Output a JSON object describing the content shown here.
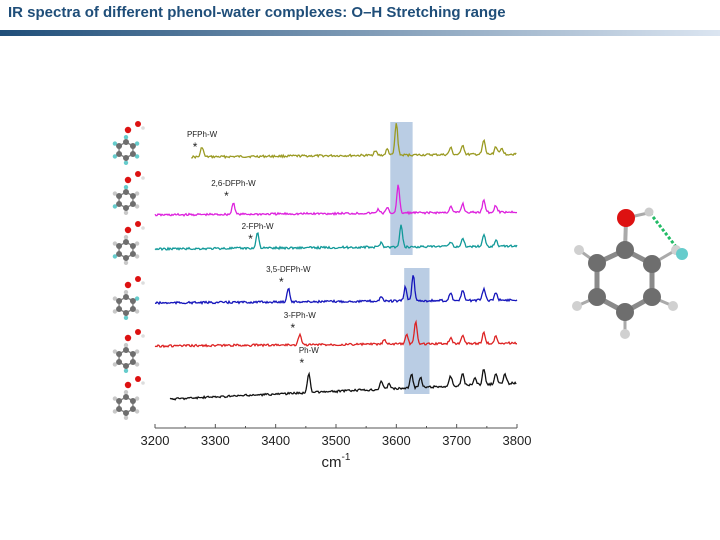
{
  "slide": {
    "title": "IR spectra of different phenol-water complexes: O–H Stretching range"
  },
  "colors": {
    "title": "#1f4e79",
    "title_bar_dark": "#1f4e79",
    "title_bar_light": "#dbe5f1",
    "highlight": "#a9c1dd",
    "oxygen": "#dd1111",
    "hydrogen": "#9aa0a6",
    "fluorine": "#66cccc",
    "carbon": "#6e6e6e",
    "hbond": "#22bb66"
  },
  "chart_data": {
    "type": "line",
    "title": "",
    "xlabel": "cm",
    "xlabel_superscript": "-1",
    "ylabel": "",
    "xlim": [
      3200,
      3800
    ],
    "xticks": [
      3200,
      3300,
      3400,
      3500,
      3600,
      3700,
      3800
    ],
    "grid": false,
    "highlight_bands": [
      {
        "x0": 3590,
        "x1": 3627,
        "traces": "upper three"
      },
      {
        "x0": 3613,
        "x1": 3655,
        "traces": "lower three"
      }
    ],
    "series": [
      {
        "name": "PFPh-W",
        "color": "#9a9a22",
        "x_start": 3260,
        "star_x": 3278,
        "peaks": [
          [
            3278,
            10
          ],
          [
            3565,
            5
          ],
          [
            3585,
            6
          ],
          [
            3600,
            32
          ],
          [
            3690,
            7
          ],
          [
            3710,
            10
          ],
          [
            3745,
            14
          ],
          [
            3765,
            8
          ],
          [
            3775,
            6
          ]
        ]
      },
      {
        "name": "2,6-DFPh-W",
        "color": "#dd22dd",
        "x_start": 3200,
        "star_x": 3330,
        "peaks": [
          [
            3330,
            12
          ],
          [
            3570,
            4
          ],
          [
            3585,
            5
          ],
          [
            3603,
            28
          ],
          [
            3690,
            6
          ],
          [
            3710,
            9
          ],
          [
            3745,
            13
          ],
          [
            3765,
            7
          ]
        ]
      },
      {
        "name": "2-FPh-W",
        "color": "#119999",
        "x_start": 3200,
        "star_x": 3370,
        "peaks": [
          [
            3370,
            16
          ],
          [
            3575,
            5
          ],
          [
            3608,
            22
          ],
          [
            3690,
            5
          ],
          [
            3710,
            8
          ],
          [
            3745,
            12
          ],
          [
            3765,
            6
          ]
        ]
      },
      {
        "name": "3,5-DFPh-W",
        "color": "#1515bb",
        "x_start": 3200,
        "star_x": 3421,
        "peaks": [
          [
            3421,
            14
          ],
          [
            3575,
            5
          ],
          [
            3615,
            14
          ],
          [
            3628,
            26
          ],
          [
            3690,
            8
          ],
          [
            3710,
            10
          ],
          [
            3745,
            12
          ],
          [
            3765,
            8
          ]
        ]
      },
      {
        "name": "3-FPh-W",
        "color": "#dd2222",
        "x_start": 3200,
        "star_x": 3440,
        "peaks": [
          [
            3440,
            11
          ],
          [
            3580,
            4
          ],
          [
            3617,
            9
          ],
          [
            3632,
            22
          ],
          [
            3690,
            6
          ],
          [
            3710,
            9
          ],
          [
            3745,
            11
          ],
          [
            3765,
            7
          ]
        ]
      },
      {
        "name": "Ph-W",
        "color": "#111111",
        "x_start": 3225,
        "star_x": 3455,
        "peaks": [
          [
            3455,
            20
          ],
          [
            3575,
            9
          ],
          [
            3588,
            6
          ],
          [
            3625,
            14
          ],
          [
            3640,
            10
          ],
          [
            3690,
            10
          ],
          [
            3710,
            12
          ],
          [
            3730,
            8
          ],
          [
            3745,
            16
          ],
          [
            3765,
            10
          ],
          [
            3780,
            9
          ]
        ]
      }
    ]
  }
}
